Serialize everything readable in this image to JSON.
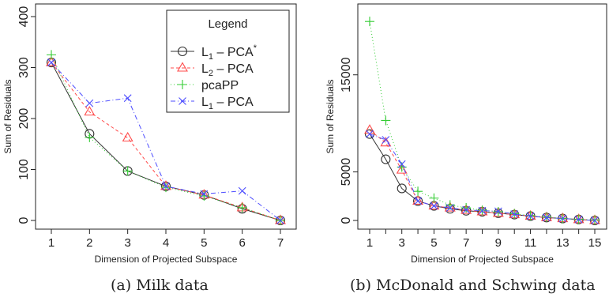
{
  "chart_data": [
    {
      "type": "line",
      "caption": "(a) Milk data",
      "xlabel": "Dimension of Projected Subspace",
      "ylabel": "Sum of Residuals",
      "x": [
        1,
        2,
        3,
        4,
        5,
        6,
        7
      ],
      "xticks": [
        1,
        2,
        3,
        4,
        5,
        6,
        7
      ],
      "xlim": [
        1,
        7
      ],
      "yticks": [
        0,
        100,
        200,
        300,
        400
      ],
      "ylim": [
        0,
        400
      ],
      "grid": false,
      "legend": {
        "title": "Legend",
        "placement": "top-right"
      },
      "series": [
        {
          "name": "L1 – PCA*",
          "label_main": "L",
          "label_sub": "1",
          "label_rest": " – PCA",
          "label_sup": "*",
          "marker": "circle",
          "color": "#333333",
          "dash": "",
          "values": [
            310,
            170,
            97,
            67,
            50,
            23,
            0
          ]
        },
        {
          "name": "L2 – PCA",
          "label_main": "L",
          "label_sub": "2",
          "label_rest": " – PCA",
          "label_sup": "",
          "marker": "triangle",
          "color": "#ff4b4b",
          "dash": "4,3",
          "values": [
            310,
            213,
            162,
            67,
            50,
            25,
            0
          ]
        },
        {
          "name": "pcaPP",
          "label_main": "pcaPP",
          "label_sub": "",
          "label_rest": "",
          "label_sup": "",
          "marker": "plus",
          "color": "#33cc33",
          "dash": "1,3",
          "values": [
            325,
            163,
            97,
            65,
            48,
            25,
            0
          ]
        },
        {
          "name": "L1 – PCA",
          "label_main": "L",
          "label_sub": "1",
          "label_rest": " – PCA",
          "label_sup": "",
          "marker": "cross",
          "color": "#4d4dff",
          "dash": "6,3,1,3",
          "values": [
            310,
            230,
            240,
            67,
            52,
            58,
            0
          ]
        }
      ]
    },
    {
      "type": "line",
      "caption": "(b) McDonald and Schwing data",
      "xlabel": "Dimension of Projected Subspace",
      "ylabel": "Sum of Residuals",
      "x": [
        1,
        2,
        3,
        4,
        5,
        6,
        7,
        8,
        9,
        10,
        11,
        12,
        13,
        14,
        15
      ],
      "xticks": [
        1,
        3,
        5,
        7,
        9,
        11,
        13,
        15
      ],
      "xminor": [
        2,
        4,
        6,
        8,
        10,
        12,
        14
      ],
      "xlim": [
        1,
        15
      ],
      "yticks": [
        0,
        5000,
        15000
      ],
      "ylim": [
        0,
        21000
      ],
      "grid": false,
      "legend": null,
      "series": [
        {
          "name": "L1 – PCA*",
          "marker": "circle",
          "color": "#333333",
          "dash": "",
          "values": [
            8900,
            6300,
            3300,
            2000,
            1500,
            1200,
            1000,
            900,
            750,
            600,
            450,
            300,
            200,
            100,
            0
          ]
        },
        {
          "name": "L2 – PCA",
          "marker": "triangle",
          "color": "#ff4b4b",
          "dash": "4,3",
          "values": [
            9300,
            8000,
            5200,
            2000,
            1500,
            1300,
            1050,
            900,
            750,
            600,
            450,
            300,
            200,
            100,
            0
          ]
        },
        {
          "name": "pcaPP",
          "marker": "plus",
          "color": "#33cc33",
          "dash": "1,3",
          "values": [
            20500,
            10300,
            5500,
            3000,
            2300,
            1600,
            1300,
            1050,
            900,
            700,
            500,
            350,
            200,
            120,
            50
          ]
        },
        {
          "name": "L1 – PCA",
          "marker": "cross",
          "color": "#4d4dff",
          "dash": "6,3,1,3",
          "values": [
            8900,
            8300,
            5800,
            2000,
            1500,
            1300,
            1100,
            1000,
            950,
            650,
            450,
            300,
            200,
            100,
            0
          ]
        }
      ]
    }
  ]
}
